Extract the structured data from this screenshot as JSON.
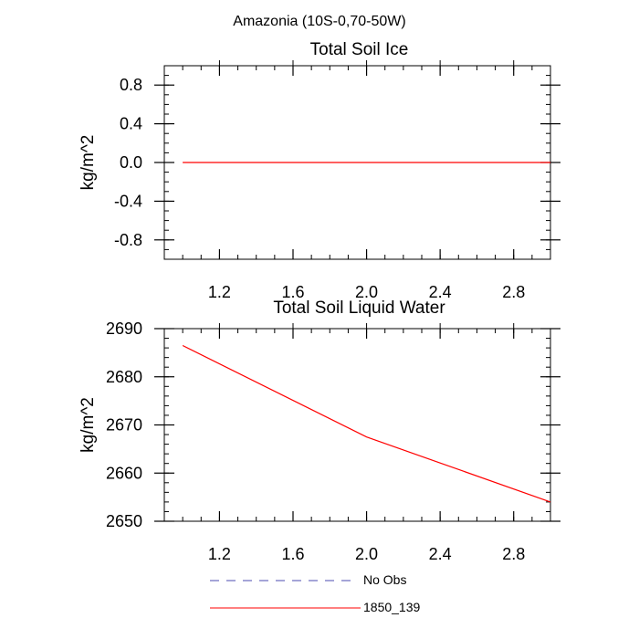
{
  "figure": {
    "title": "Amazonia (10S-0,70-50W)"
  },
  "chart_data": [
    {
      "type": "line",
      "title": "Total Soil Ice",
      "xlabel": "",
      "ylabel": "kg/m^2",
      "xlim": [
        0.9,
        3.0
      ],
      "ylim": [
        -1.0,
        1.0
      ],
      "x_ticks": [
        1.2,
        1.6,
        2.0,
        2.4,
        2.8
      ],
      "x_tick_labels": [
        "1.2",
        "1.6",
        "2.0",
        "2.4",
        "2.8"
      ],
      "y_ticks": [
        0.8,
        0.4,
        0.0,
        -0.4,
        -0.8
      ],
      "y_tick_labels": [
        "0.8",
        "0.4",
        "0.0",
        "-0.4",
        "-0.8"
      ],
      "series": [
        {
          "name": "1850_139",
          "color": "#ff0000",
          "x": [
            1,
            2,
            3
          ],
          "y": [
            0.0,
            0.0,
            0.0
          ]
        }
      ]
    },
    {
      "type": "line",
      "title": "Total Soil Liquid Water",
      "xlabel": "",
      "ylabel": "kg/m^2",
      "xlim": [
        0.9,
        3.0
      ],
      "ylim": [
        2650,
        2690
      ],
      "x_ticks": [
        1.2,
        1.6,
        2.0,
        2.4,
        2.8
      ],
      "x_tick_labels": [
        "1.2",
        "1.6",
        "2.0",
        "2.4",
        "2.8"
      ],
      "y_ticks": [
        2690,
        2680,
        2670,
        2660,
        2650
      ],
      "y_tick_labels": [
        "2690",
        "2680",
        "2670",
        "2660",
        "2650"
      ],
      "series": [
        {
          "name": "1850_139",
          "color": "#ff0000",
          "x": [
            1,
            2,
            3
          ],
          "y": [
            2686.5,
            2667.5,
            2654.0
          ]
        }
      ]
    }
  ],
  "legend": {
    "items": [
      {
        "label": "No Obs",
        "color": "#4b4bb0",
        "style": "dashed"
      },
      {
        "label": "1850_139",
        "color": "#ff0000",
        "style": "solid"
      }
    ]
  }
}
